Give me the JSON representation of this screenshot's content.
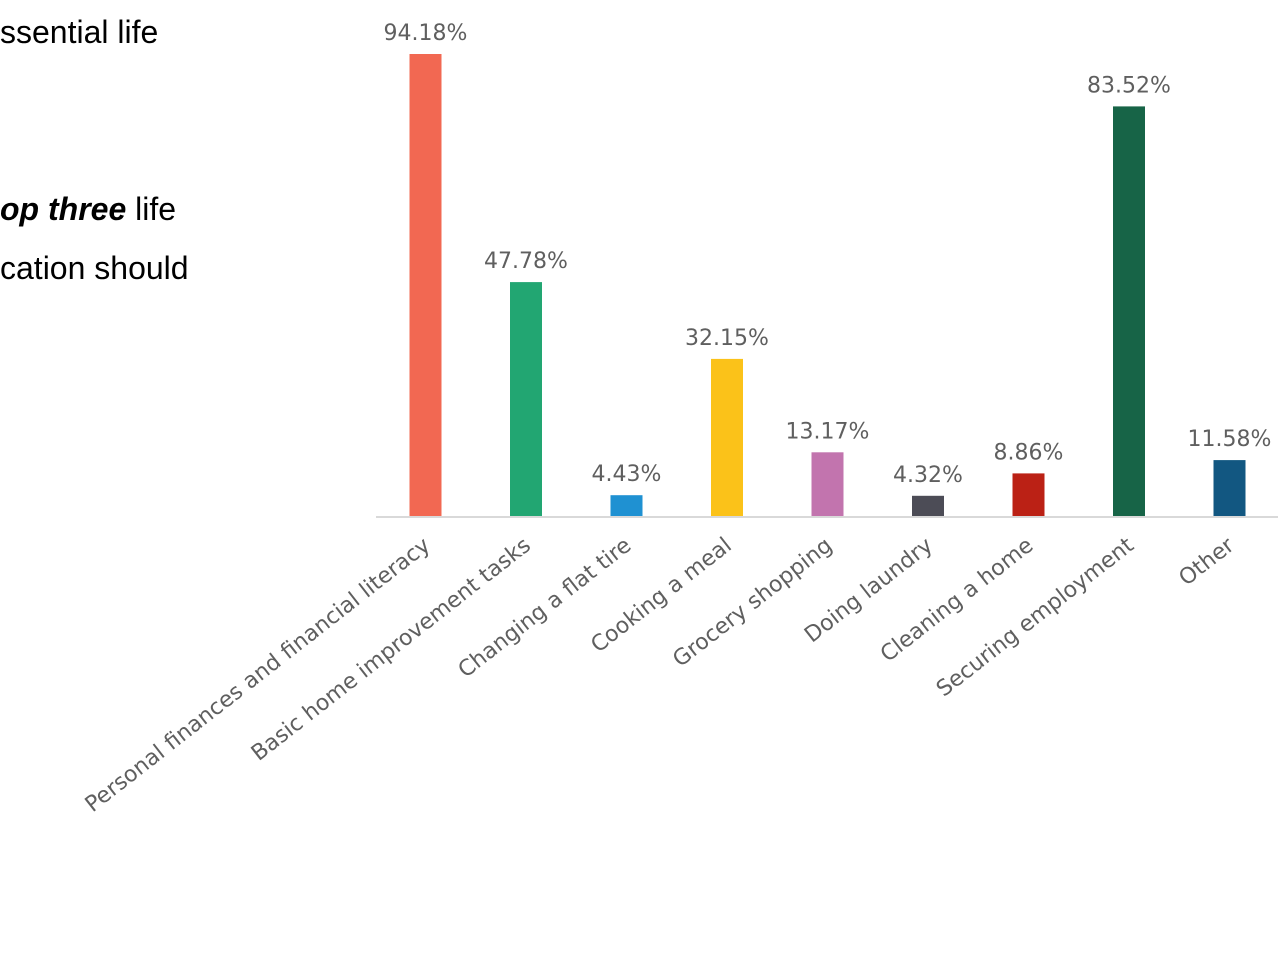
{
  "side_text": {
    "line1": "ssential life",
    "line2_emphasis": "op three",
    "line2_rest": " life",
    "line3": "cation should"
  },
  "chart_data": {
    "type": "bar",
    "title": "",
    "xlabel": "",
    "ylabel": "",
    "ylim": [
      0,
      100
    ],
    "grid": false,
    "legend": "none",
    "categories": [
      "Personal finances and financial literacy",
      "Basic home improvement tasks",
      "Changing a flat tire",
      "Cooking a meal",
      "Grocery shopping",
      "Doing laundry",
      "Cleaning a home",
      "Securing employment",
      "Other"
    ],
    "values": [
      94.18,
      47.78,
      4.43,
      32.15,
      13.17,
      4.32,
      8.86,
      83.52,
      11.58
    ],
    "data_labels": [
      "94.18%",
      "47.78%",
      "4.43%",
      "32.15%",
      "13.17%",
      "4.32%",
      "8.86%",
      "83.52%",
      "11.58%"
    ],
    "colors": [
      "#f26852",
      "#22a672",
      "#1f91d2",
      "#fbc219",
      "#c274ae",
      "#4c4c56",
      "#bb2115",
      "#176447",
      "#125781"
    ],
    "axis_color": "#d9d9d9",
    "text_color": "#5f5f5f"
  }
}
